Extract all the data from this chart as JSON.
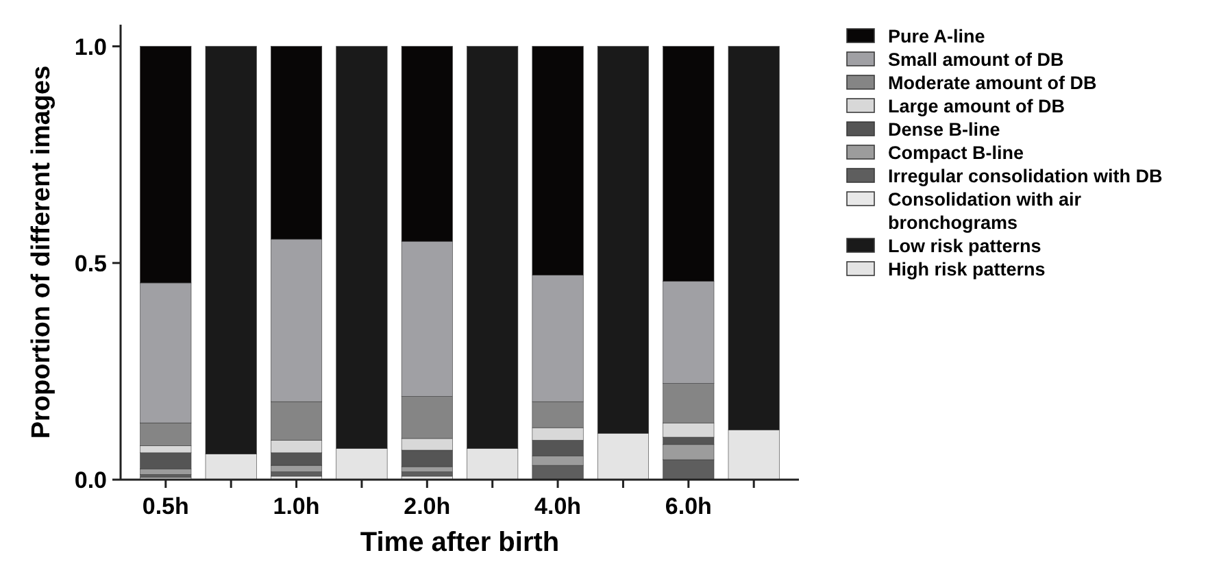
{
  "chart_data": {
    "type": "bar",
    "stacked": true,
    "xlabel": "Time after birth",
    "ylabel": "Proportion of different images",
    "categories": [
      "0.5h",
      null,
      "1.0h",
      null,
      "2.0h",
      null,
      "4.0h",
      null,
      "6.0h",
      null
    ],
    "ylim": [
      0,
      1.05
    ],
    "yticks": [
      {
        "value": 0,
        "label": "0.0"
      },
      {
        "value": 0.5,
        "label": "0.5"
      },
      {
        "value": 1,
        "label": "1.0"
      }
    ],
    "legend": "top right",
    "series": [
      {
        "name": "Consolidation with air bronchograms",
        "color": "#e8e8e8",
        "values": [
          0.005,
          null,
          0.008,
          null,
          0.008,
          null,
          0,
          null,
          0,
          null
        ]
      },
      {
        "name": "Irregular consolidation with DB",
        "color": "#5e5e5e",
        "values": [
          0.007,
          null,
          0.01,
          null,
          0.01,
          null,
          0.033,
          null,
          0.046,
          null
        ]
      },
      {
        "name": "Compact B-line",
        "color": "#9c9c9c",
        "values": [
          0.013,
          null,
          0.015,
          null,
          0.012,
          null,
          0.022,
          null,
          0.035,
          null
        ]
      },
      {
        "name": "Dense B-line",
        "color": "#555555",
        "values": [
          0.037,
          null,
          0.029,
          null,
          0.038,
          null,
          0.036,
          null,
          0.017,
          null
        ]
      },
      {
        "name": "Large amount of DB",
        "color": "#d8d8d8",
        "values": [
          0.016,
          null,
          0.029,
          null,
          0.027,
          null,
          0.029,
          null,
          0.033,
          null
        ]
      },
      {
        "name": "Moderate amount of DB",
        "color": "#858585",
        "values": [
          0.053,
          null,
          0.089,
          null,
          0.097,
          null,
          0.06,
          null,
          0.091,
          null
        ]
      },
      {
        "name": "Small amount of DB",
        "color": "#a0a0a4",
        "values": [
          0.323,
          null,
          0.375,
          null,
          0.358,
          null,
          0.292,
          null,
          0.236,
          null
        ]
      },
      {
        "name": "Pure A-line",
        "color": "#080606",
        "values": [
          0.546,
          null,
          0.445,
          null,
          0.45,
          null,
          0.528,
          null,
          0.542,
          null
        ]
      },
      {
        "name": "High risk patterns",
        "color": "#e4e4e4",
        "values": [
          null,
          0.059,
          null,
          0.072,
          null,
          0.072,
          null,
          0.107,
          null,
          0.115
        ]
      },
      {
        "name": "Low risk patterns",
        "color": "#1a1a1a",
        "values": [
          null,
          0.941,
          null,
          0.928,
          null,
          0.928,
          null,
          0.893,
          null,
          0.885
        ]
      }
    ]
  }
}
